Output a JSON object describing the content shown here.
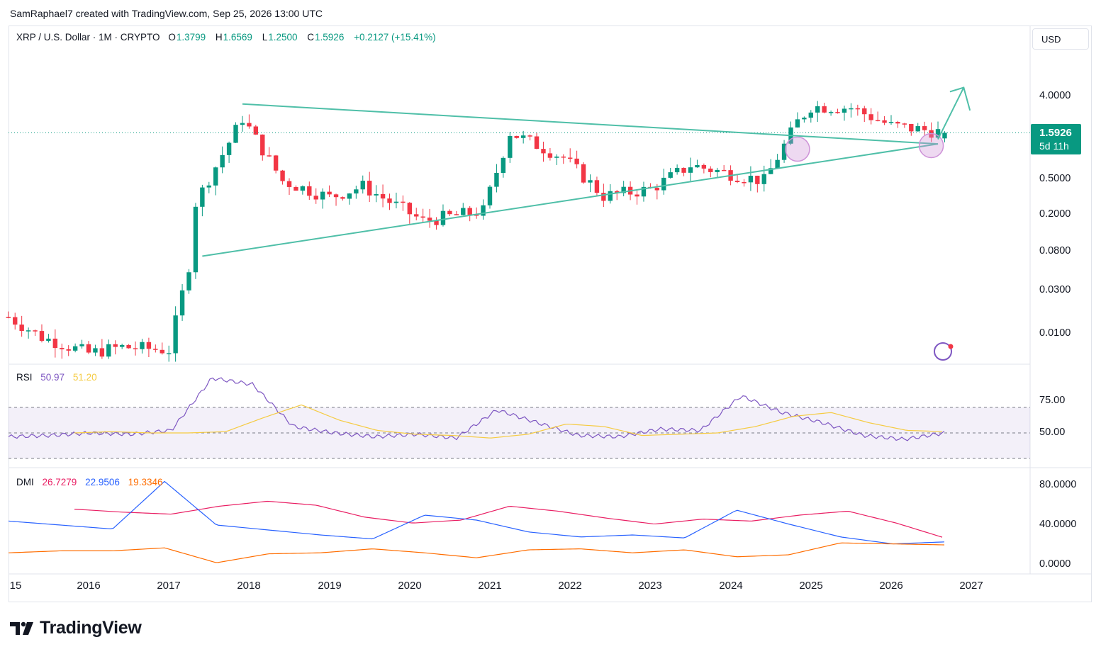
{
  "credit": "SamRaphael7 created with TradingView.com, Sep 25, 2026 13:00 UTC",
  "legend": {
    "symbol": "XRP / U.S. Dollar · 1M · CRYPTO",
    "open_k": "O",
    "open_v": "1.3799",
    "high_k": "H",
    "high_v": "1.6569",
    "low_k": "L",
    "low_v": "1.2500",
    "close_k": "C",
    "close_v": "1.5926",
    "change": "+0.2127 (+15.41%)"
  },
  "currency_button": "USD",
  "last_price": {
    "value": "1.5926",
    "countdown": "5d 11h"
  },
  "price_axis": [
    "4.0000",
    "0.5000",
    "0.2000",
    "0.0800",
    "0.0300",
    "0.0100"
  ],
  "rsi_pane": {
    "name": "RSI",
    "value": "50.97",
    "ma": "51.20",
    "axis": [
      "75.00",
      "50.00"
    ]
  },
  "dmi_pane": {
    "name": "DMI",
    "adx": "26.7279",
    "plus_di": "22.9506",
    "minus_di": "19.3346",
    "axis": [
      "80.0000",
      "40.0000",
      "0.0000"
    ]
  },
  "time_axis": [
    "15",
    "2016",
    "2017",
    "2018",
    "2019",
    "2020",
    "2021",
    "2022",
    "2023",
    "2024",
    "2025",
    "2026",
    "2027"
  ],
  "brand": "TradingView",
  "colors": {
    "up": "#089981",
    "down": "#f23645",
    "trendline": "#4fbfa8",
    "rsi": "#7e57c2",
    "rsi_ma": "#f5cb42",
    "adx": "#e91e63",
    "plus_di": "#2962ff",
    "minus_di": "#ff6d00"
  },
  "chart_data": [
    {
      "type": "candlestick",
      "title": "XRP / U.S. Dollar · 1M · CRYPTO",
      "scale": "log",
      "x_range": [
        "2015",
        "2027"
      ],
      "y_ticks": [
        4.0,
        0.5,
        0.2,
        0.08,
        0.03,
        0.01
      ],
      "sampled_closes": [
        {
          "x": "2015-01",
          "close": 0.015
        },
        {
          "x": "2015-06",
          "close": 0.009
        },
        {
          "x": "2016-01",
          "close": 0.006
        },
        {
          "x": "2016-06",
          "close": 0.007
        },
        {
          "x": "2017-01",
          "close": 0.0065
        },
        {
          "x": "2017-04",
          "close": 0.055
        },
        {
          "x": "2017-05",
          "close": 0.27
        },
        {
          "x": "2017-12",
          "close": 2.3
        },
        {
          "x": "2018-06",
          "close": 0.47
        },
        {
          "x": "2019-01",
          "close": 0.31
        },
        {
          "x": "2019-06",
          "close": 0.41
        },
        {
          "x": "2020-03",
          "close": 0.17
        },
        {
          "x": "2020-12",
          "close": 0.22
        },
        {
          "x": "2021-04",
          "close": 1.6
        },
        {
          "x": "2021-12",
          "close": 0.85
        },
        {
          "x": "2022-06",
          "close": 0.32
        },
        {
          "x": "2023-01",
          "close": 0.38
        },
        {
          "x": "2023-07",
          "close": 0.7
        },
        {
          "x": "2024-06",
          "close": 0.47
        },
        {
          "x": "2024-11",
          "close": 2.1
        },
        {
          "x": "2025-01",
          "close": 3.1
        },
        {
          "x": "2025-07",
          "close": 3.0
        },
        {
          "x": "2026-01",
          "close": 1.9
        },
        {
          "x": "2026-09",
          "close": 1.5926
        }
      ],
      "trendlines": [
        {
          "from": {
            "x": "2017-12",
            "y": 3.3
          },
          "to": {
            "x": "2026-08",
            "y": 1.2
          }
        },
        {
          "from": {
            "x": "2017-06",
            "y": 0.07
          },
          "to": {
            "x": "2026-08",
            "y": 1.2
          }
        }
      ]
    },
    {
      "type": "line",
      "title": "RSI",
      "ylim": [
        20,
        100
      ],
      "bands": [
        30,
        50,
        70
      ],
      "series": [
        {
          "name": "RSI",
          "values_sampled": [
            47,
            48,
            50,
            49,
            52,
            93,
            88,
            55,
            50,
            47,
            49,
            46,
            68,
            58,
            48,
            47,
            53,
            52,
            79,
            66,
            58,
            48,
            45,
            50
          ]
        },
        {
          "name": "RSI MA",
          "values_sampled": [
            50,
            51,
            50,
            50,
            51,
            62,
            72,
            60,
            52,
            49,
            48,
            46,
            49,
            57,
            55,
            48,
            49,
            50,
            55,
            63,
            66,
            58,
            52,
            51
          ]
        }
      ]
    },
    {
      "type": "line",
      "title": "DMI",
      "ylim": [
        0,
        90
      ],
      "series": [
        {
          "name": "ADX",
          "values": [
            56,
            53,
            51,
            59,
            64,
            60,
            48,
            42,
            45,
            59,
            54,
            47,
            41,
            46,
            44,
            50,
            54,
            42,
            27
          ]
        },
        {
          "name": "+DI",
          "values": [
            44,
            40,
            36,
            84,
            40,
            35,
            30,
            26,
            50,
            45,
            33,
            28,
            30,
            27,
            55,
            41,
            28,
            21,
            23
          ]
        },
        {
          "name": "-DI",
          "values": [
            12,
            14,
            14,
            17,
            2,
            11,
            12,
            16,
            12,
            7,
            15,
            16,
            12,
            15,
            8,
            10,
            22,
            21,
            20
          ]
        }
      ]
    }
  ]
}
